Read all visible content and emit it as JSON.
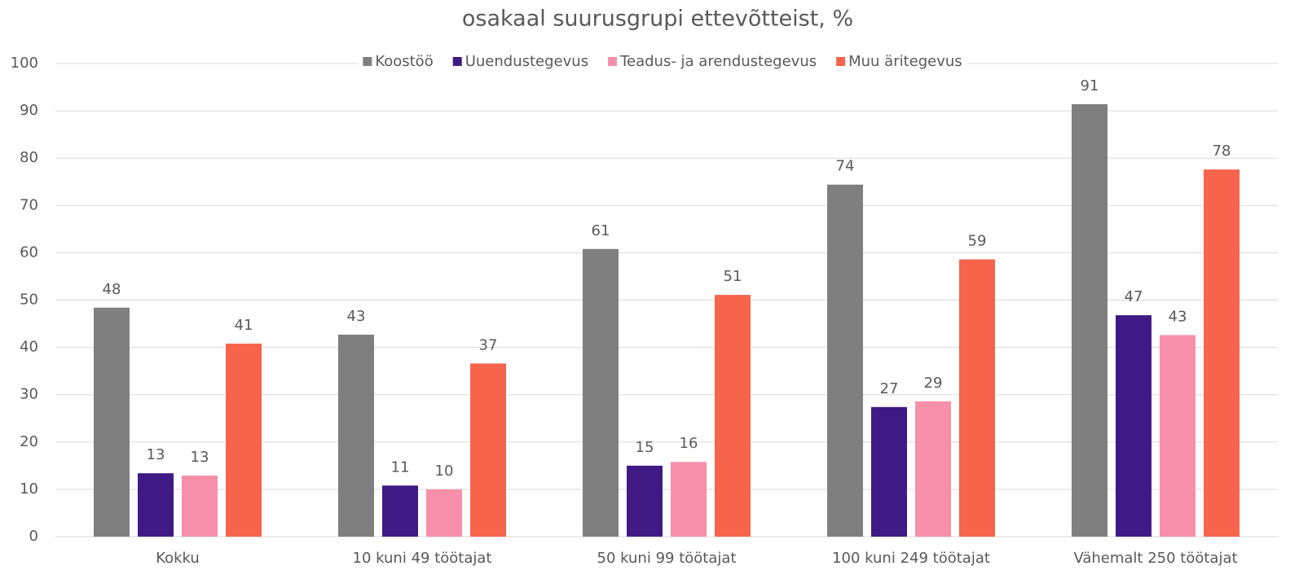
{
  "chart_data": {
    "type": "bar",
    "title": "osakaal suurusgrupi ettevõtteist, %",
    "categories": [
      "Kokku",
      "10 kuni 49 töötajat",
      "50 kuni 99 töötajat",
      "100 kuni 249 töötajat",
      "Vähemalt 250 töötajat"
    ],
    "series": [
      {
        "name": "Koostöö",
        "color": "#7f7f7f",
        "values": [
          48.4,
          42.7,
          60.8,
          74.4,
          91.4
        ],
        "value_labels": [
          "48",
          "43",
          "61",
          "74",
          "91"
        ]
      },
      {
        "name": "Uuendustegevus",
        "color": "#3f1a84",
        "values": [
          13.4,
          10.8,
          15.0,
          27.4,
          46.8
        ],
        "value_labels": [
          "13",
          "11",
          "15",
          "27",
          "47"
        ]
      },
      {
        "name": "Teadus- ja arendustegevus",
        "color": "#f78fab",
        "values": [
          12.9,
          10.0,
          15.8,
          28.6,
          42.6
        ],
        "value_labels": [
          "13",
          "10",
          "16",
          "29",
          "43"
        ]
      },
      {
        "name": "Muu äritegevus",
        "color": "#f6644c",
        "values": [
          40.8,
          36.6,
          51.1,
          58.6,
          77.6
        ],
        "value_labels": [
          "41",
          "37",
          "51",
          "59",
          "78"
        ]
      }
    ],
    "ylim": [
      0,
      100
    ],
    "yticks": [
      0,
      10,
      20,
      30,
      40,
      50,
      60,
      70,
      80,
      90,
      100
    ],
    "grid": true,
    "legend": "top"
  }
}
